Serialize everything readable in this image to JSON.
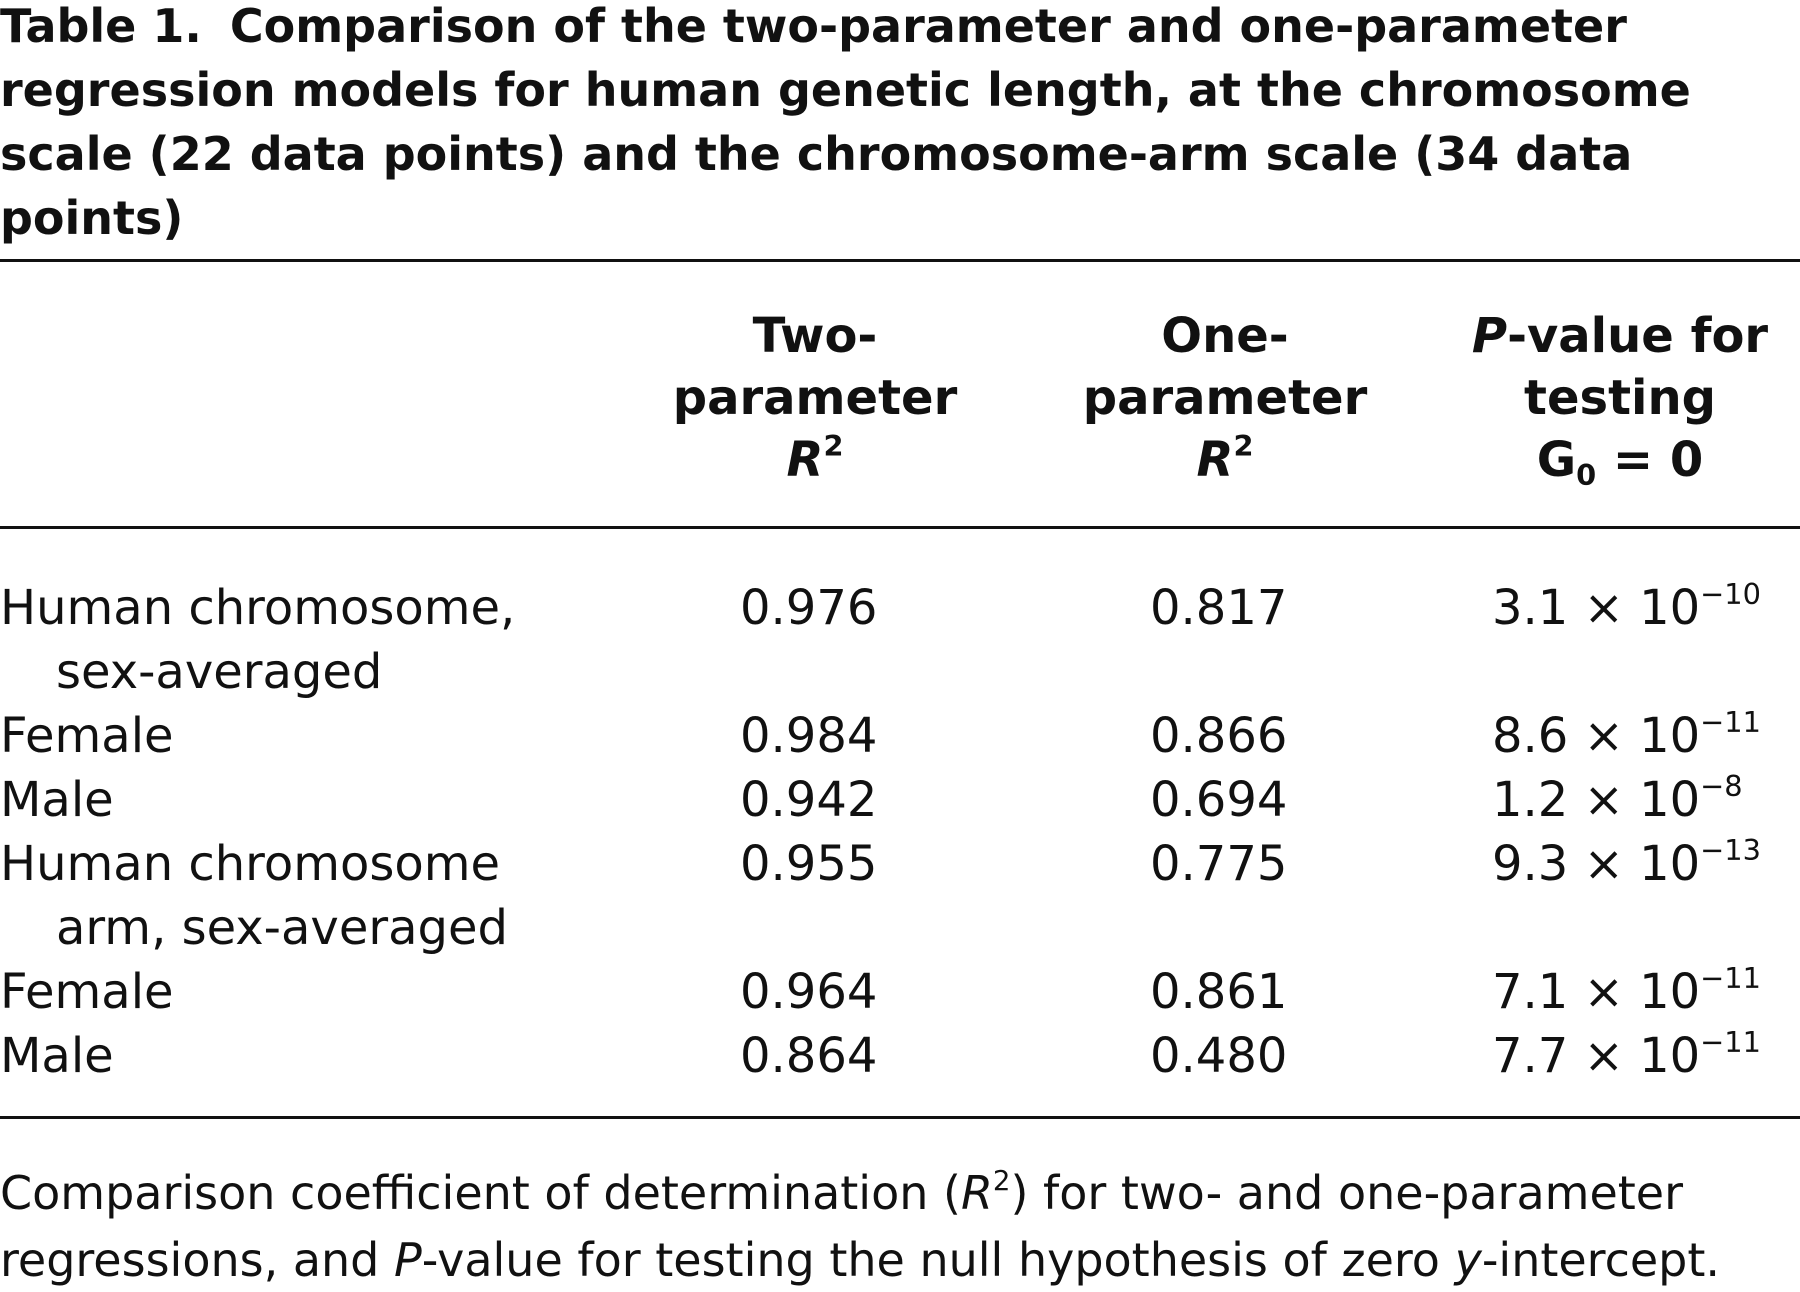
{
  "caption": {
    "label": "Table 1.",
    "text": "Comparison of the two-parameter and one-parameter regression models for human genetic length, at the chromosome scale (22 data points) and the chromosome-arm scale (34 data points)"
  },
  "columns": {
    "two_param": {
      "line1": "Two-",
      "line2": "parameter",
      "sym": "R",
      "sup": "2"
    },
    "one_param": {
      "line1": "One-",
      "line2": "parameter",
      "sym": "R",
      "sup": "2"
    },
    "pvalue": {
      "p": "P",
      "line1_rest": "-value for",
      "line2": "testing",
      "line3_sym": "G",
      "line3_sub": "0",
      "line3_rest": " = 0"
    }
  },
  "rows": [
    {
      "label_line1": "Human chromosome,",
      "label_line2": "sex-averaged",
      "two": "0.976",
      "one": "0.817",
      "p_mant": "3.1 × 10",
      "p_exp": "−10"
    },
    {
      "label_line1": "Female",
      "label_line2": "",
      "two": "0.984",
      "one": "0.866",
      "p_mant": "8.6 × 10",
      "p_exp": "−11"
    },
    {
      "label_line1": "Male",
      "label_line2": "",
      "two": "0.942",
      "one": "0.694",
      "p_mant": "1.2 × 10",
      "p_exp": "−8"
    },
    {
      "label_line1": "Human chromosome",
      "label_line2": "arm, sex-averaged",
      "two": "0.955",
      "one": "0.775",
      "p_mant": "9.3 × 10",
      "p_exp": "−13"
    },
    {
      "label_line1": "Female",
      "label_line2": "",
      "two": "0.964",
      "one": "0.861",
      "p_mant": "7.1 × 10",
      "p_exp": "−11"
    },
    {
      "label_line1": "Male",
      "label_line2": "",
      "two": "0.864",
      "one": "0.480",
      "p_mant": "7.7 × 10",
      "p_exp": "−11"
    }
  ],
  "footnote": {
    "a": "Comparison coefficient of determination (",
    "r": "R",
    "sup": "2",
    "b": ") for two- and one-parameter",
    "c": "regressions, and ",
    "p": "P",
    "d": "-value for testing the null hypothesis of zero ",
    "y": "y",
    "e": "-intercept."
  }
}
